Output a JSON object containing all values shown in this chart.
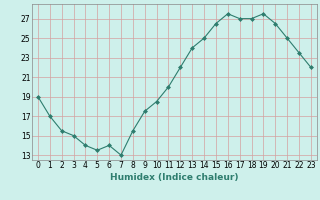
{
  "x": [
    0,
    1,
    2,
    3,
    4,
    5,
    6,
    7,
    8,
    9,
    10,
    11,
    12,
    13,
    14,
    15,
    16,
    17,
    18,
    19,
    20,
    21,
    22,
    23
  ],
  "y": [
    19,
    17,
    15.5,
    15,
    14,
    13.5,
    14,
    13,
    15.5,
    17.5,
    18.5,
    20,
    22,
    24,
    25,
    26.5,
    27.5,
    27,
    27,
    27.5,
    26.5,
    25,
    23.5,
    22
  ],
  "xlabel": "Humidex (Indice chaleur)",
  "xlim": [
    -0.5,
    23.5
  ],
  "ylim": [
    12.5,
    28.5
  ],
  "yticks": [
    13,
    15,
    17,
    19,
    21,
    23,
    25,
    27
  ],
  "xticks": [
    0,
    1,
    2,
    3,
    4,
    5,
    6,
    7,
    8,
    9,
    10,
    11,
    12,
    13,
    14,
    15,
    16,
    17,
    18,
    19,
    20,
    21,
    22,
    23
  ],
  "line_color": "#2e7d6e",
  "marker": "D",
  "marker_size": 2.0,
  "bg_color": "#cef0eb",
  "grid_color": "#d4a0a0",
  "axes_bg": "#cef0eb",
  "label_fontsize": 6.5,
  "tick_fontsize": 5.5
}
